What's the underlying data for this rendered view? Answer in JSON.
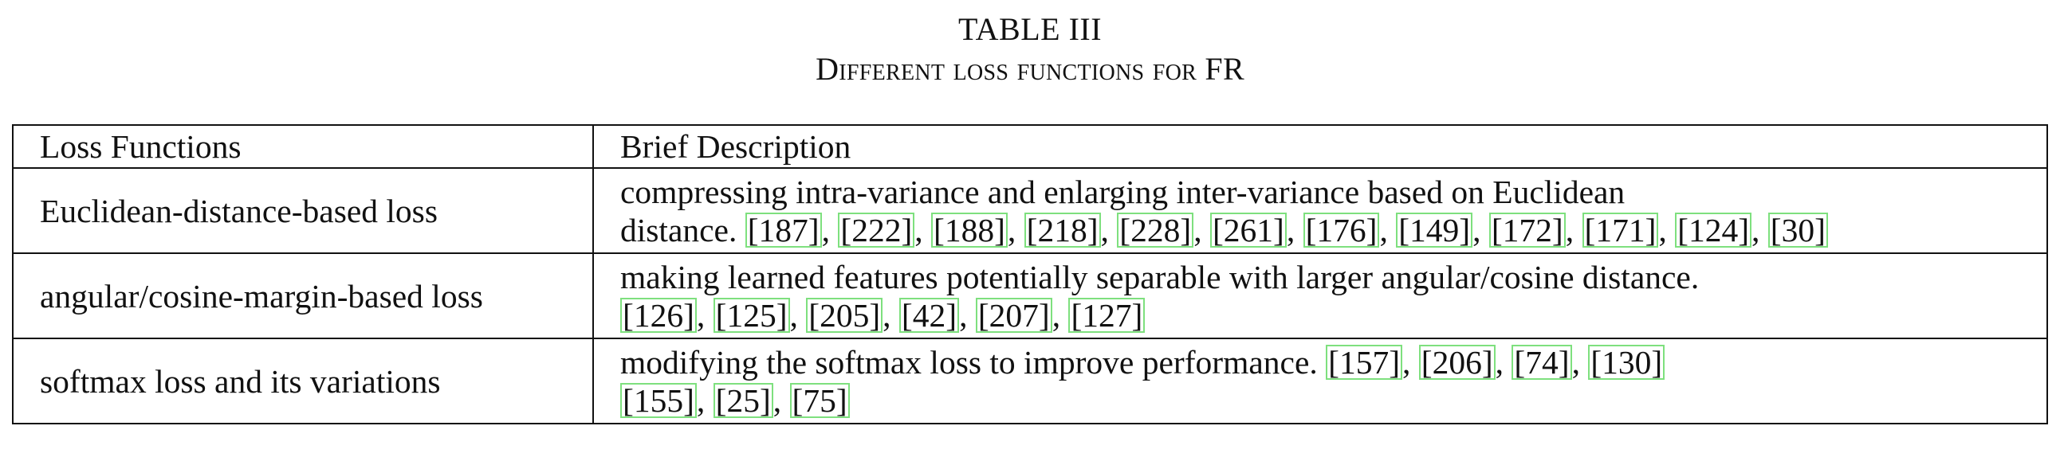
{
  "caption": {
    "label": "TABLE III",
    "title": "Different loss functions for FR"
  },
  "table": {
    "headers": [
      "Loss Functions",
      "Brief Description"
    ],
    "rows": [
      {
        "name": "Euclidean-distance-based loss",
        "desc_line1": "compressing intra-variance and enlarging inter-variance based on Euclidean",
        "desc_line2_prefix": "distance. ",
        "line2_refs": [
          "[187]",
          "[222]",
          "[188]",
          "[218]",
          "[228]",
          "[261]",
          "[176]",
          "[149]",
          "[172]",
          "[171]",
          "[124]",
          "[30]"
        ]
      },
      {
        "name": "angular/cosine-margin-based loss",
        "desc_line1": "making learned features potentially separable with larger angular/cosine distance.",
        "line2_refs": [
          "[126]",
          "[125]",
          "[205]",
          "[42]",
          "[207]",
          "[127]"
        ]
      },
      {
        "name": "softmax loss and its variations",
        "desc_line1_prefix": "modifying the softmax loss to improve performance. ",
        "line1_refs": [
          "[157]",
          "[206]",
          "[74]",
          "[130]"
        ],
        "line2_refs": [
          "[155]",
          "[25]",
          "[75]"
        ]
      }
    ]
  },
  "colors": {
    "citation_box": "#7ee07e",
    "rule": "#111111"
  }
}
